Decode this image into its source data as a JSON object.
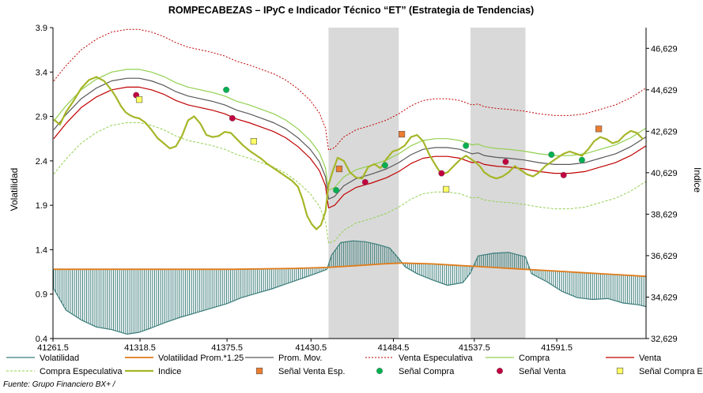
{
  "chart_data": {
    "type": "line",
    "title": "ROMPECABEZAS – IPyC e Indicador Técnico “ET” (Estrategia de Tendencias)",
    "ylabel": "Volatilidad",
    "y2label": "Indice",
    "source": "Fuente: Grupo Financiero BX+ /",
    "xlim": [
      41261.5,
      41650
    ],
    "ylim": [
      0.4,
      3.9
    ],
    "y2lim": [
      32629,
      47629
    ],
    "x_ticks": [
      "41261.5",
      "41318.5",
      "41375.5",
      "41430.5",
      "41484.5",
      "41537.5",
      "41591.5"
    ],
    "y_ticks": [
      "0.4",
      "0.9",
      "1.4",
      "1.9",
      "2.4",
      "2.9",
      "3.4",
      "3.9"
    ],
    "y2_ticks": [
      "32,629",
      "34,629",
      "36,629",
      "38,629",
      "40,629",
      "42,629",
      "44,629",
      "46,629"
    ],
    "shaded_regions": [
      [
        41442,
        41488
      ],
      [
        41535,
        41571
      ]
    ],
    "colors": {
      "volatilidad": "#3b7d7a",
      "vol_prom": "#e07b1a",
      "prom_mov": "#595959",
      "venta_esp": "#c00000",
      "compra": "#92d050",
      "venta": "#c00000",
      "compra_esp": "#92d050",
      "indice": "#a6b628",
      "shade": "#d9d9d9",
      "senal_venta_esp": "#ed7d31",
      "senal_compra": "#00b050",
      "senal_venta": "#c00040",
      "senal_compra_esp": "#ffff66"
    },
    "legend": [
      {
        "key": "volatilidad",
        "label": "Volatilidad"
      },
      {
        "key": "vol_prom",
        "label": "Volatilidad Prom.*1.25"
      },
      {
        "key": "prom_mov",
        "label": "Prom. Mov."
      },
      {
        "key": "venta_esp",
        "label": "Venta Especulativa"
      },
      {
        "key": "compra",
        "label": "Compra"
      },
      {
        "key": "venta",
        "label": "Venta"
      },
      {
        "key": "compra_esp",
        "label": "Compra Especulativa"
      },
      {
        "key": "indice",
        "label": "Indice"
      },
      {
        "key": "senal_venta_esp",
        "label": "Señal Venta Esp."
      },
      {
        "key": "senal_compra",
        "label": "Señal Compra"
      },
      {
        "key": "senal_venta",
        "label": "Señal Venta"
      },
      {
        "key": "senal_compra_esp",
        "label": "Señal Compra Esp."
      }
    ],
    "volatilidad_x": [
      41262,
      41270,
      41280,
      41290,
      41300,
      41310,
      41318,
      41326,
      41335,
      41345,
      41355,
      41365,
      41375,
      41385,
      41395,
      41405,
      41415,
      41425,
      41435,
      41441,
      41444,
      41450,
      41458,
      41466,
      41474,
      41482,
      41488,
      41492,
      41500,
      41510,
      41520,
      41530,
      41535,
      41540,
      41550,
      41560,
      41571,
      41575,
      41585,
      41595,
      41605,
      41615,
      41625,
      41635,
      41645,
      41650
    ],
    "volatilidad_y": [
      0.96,
      0.72,
      0.61,
      0.53,
      0.5,
      0.45,
      0.47,
      0.52,
      0.58,
      0.64,
      0.69,
      0.74,
      0.79,
      0.86,
      0.91,
      0.96,
      1.02,
      1.08,
      1.14,
      1.18,
      1.34,
      1.48,
      1.5,
      1.49,
      1.46,
      1.42,
      1.3,
      1.21,
      1.13,
      1.06,
      1.0,
      1.03,
      1.14,
      1.33,
      1.36,
      1.37,
      1.32,
      1.13,
      1.04,
      0.93,
      0.86,
      0.84,
      0.85,
      0.8,
      0.78,
      0.76
    ],
    "vol_prom_x": [
      41262,
      41300,
      41340,
      41380,
      41420,
      41441,
      41460,
      41478,
      41490,
      41510,
      41530,
      41550,
      41570,
      41590,
      41610,
      41630,
      41650
    ],
    "vol_prom_y": [
      1.18,
      1.18,
      1.18,
      1.18,
      1.19,
      1.2,
      1.22,
      1.24,
      1.25,
      1.24,
      1.22,
      1.2,
      1.18,
      1.16,
      1.14,
      1.12,
      1.1
    ],
    "indice_x": [
      41262,
      41266,
      41270,
      41275,
      41280,
      41285,
      41290,
      41295,
      41300,
      41303,
      41306,
      41309,
      41312,
      41315,
      41318,
      41322,
      41326,
      41330,
      41334,
      41338,
      41342,
      41346,
      41350,
      41354,
      41358,
      41362,
      41366,
      41370,
      41374,
      41378,
      41382,
      41386,
      41390,
      41394,
      41398,
      41402,
      41406,
      41410,
      41414,
      41418,
      41422,
      41425,
      41428,
      41431,
      41434,
      41437,
      41440,
      41442,
      41445,
      41448,
      41452,
      41456,
      41460,
      41464,
      41468,
      41472,
      41476,
      41480,
      41484,
      41488,
      41492,
      41496,
      41500,
      41504,
      41508,
      41512,
      41516,
      41520,
      41524,
      41528,
      41532,
      41535,
      41538,
      41541,
      41544,
      41548,
      41552,
      41556,
      41560,
      41564,
      41568,
      41572,
      41576,
      41580,
      41584,
      41588,
      41592,
      41596,
      41600,
      41604,
      41608,
      41612,
      41616,
      41620,
      41624,
      41628,
      41632,
      41636,
      41640,
      41644,
      41648
    ],
    "indice_y": [
      43200,
      42950,
      43550,
      44100,
      44700,
      45100,
      45250,
      45050,
      44600,
      44250,
      43850,
      43550,
      43400,
      43300,
      43250,
      43050,
      42700,
      42300,
      42050,
      41800,
      41900,
      42400,
      43150,
      43350,
      43000,
      42450,
      42350,
      42400,
      42600,
      42550,
      42250,
      41950,
      41700,
      41500,
      41300,
      41050,
      40850,
      40650,
      40450,
      40250,
      39950,
      39350,
      38550,
      38150,
      37900,
      38100,
      38750,
      40050,
      40750,
      41350,
      41200,
      40650,
      40400,
      40350,
      40900,
      41050,
      40850,
      41300,
      41650,
      41750,
      41950,
      42350,
      42450,
      42150,
      41500,
      41000,
      40550,
      40650,
      40950,
      41250,
      41450,
      41300,
      41150,
      40950,
      40650,
      40450,
      40350,
      40450,
      40650,
      40950,
      40750,
      40550,
      40450,
      40650,
      40950,
      41150,
      41350,
      41550,
      41650,
      41550,
      41450,
      41750,
      42150,
      42350,
      42250,
      42050,
      42150,
      42450,
      42650,
      42550,
      42250
    ],
    "prom_mov_x": [
      41262,
      41270,
      41280,
      41290,
      41300,
      41310,
      41318,
      41326,
      41334,
      41342,
      41350,
      41358,
      41366,
      41374,
      41382,
      41390,
      41398,
      41406,
      41414,
      41422,
      41430,
      41436,
      41440,
      41442,
      41446,
      41452,
      41460,
      41470,
      41480,
      41488,
      41496,
      41504,
      41512,
      41520,
      41528,
      41536,
      41540,
      41544,
      41552,
      41560,
      41570,
      41580,
      41590,
      41600,
      41610,
      41620,
      41630,
      41640,
      41650
    ],
    "prom_mov_y": [
      2.75,
      2.92,
      3.1,
      3.22,
      3.3,
      3.33,
      3.33,
      3.3,
      3.25,
      3.18,
      3.13,
      3.1,
      3.07,
      3.03,
      2.97,
      2.93,
      2.88,
      2.83,
      2.76,
      2.66,
      2.53,
      2.39,
      2.22,
      1.97,
      2.0,
      2.12,
      2.2,
      2.25,
      2.31,
      2.38,
      2.47,
      2.53,
      2.55,
      2.55,
      2.53,
      2.48,
      2.49,
      2.46,
      2.44,
      2.43,
      2.41,
      2.38,
      2.36,
      2.36,
      2.38,
      2.43,
      2.48,
      2.56,
      2.67
    ],
    "venta_esp_x": [
      41262,
      41270,
      41280,
      41290,
      41300,
      41310,
      41318,
      41326,
      41334,
      41342,
      41350,
      41358,
      41366,
      41374,
      41382,
      41390,
      41398,
      41406,
      41414,
      41422,
      41430,
      41436,
      41440,
      41442,
      41446,
      41452,
      41460,
      41470,
      41480,
      41488,
      41496,
      41504,
      41512,
      41520,
      41528,
      41536,
      41540,
      41544,
      41552,
      41560,
      41570,
      41580,
      41590,
      41600,
      41610,
      41620,
      41630,
      41640,
      41650
    ],
    "venta_esp_y": [
      3.3,
      3.47,
      3.65,
      3.77,
      3.85,
      3.88,
      3.88,
      3.85,
      3.8,
      3.73,
      3.68,
      3.65,
      3.62,
      3.58,
      3.52,
      3.48,
      3.43,
      3.38,
      3.31,
      3.21,
      3.08,
      2.94,
      2.77,
      2.52,
      2.55,
      2.67,
      2.75,
      2.8,
      2.86,
      2.93,
      3.02,
      3.08,
      3.1,
      3.1,
      3.08,
      3.03,
      3.04,
      3.01,
      2.99,
      2.98,
      2.96,
      2.93,
      2.91,
      2.91,
      2.93,
      2.98,
      3.03,
      3.11,
      3.22
    ],
    "compra_x": [
      41262,
      41270,
      41280,
      41290,
      41300,
      41310,
      41318,
      41326,
      41334,
      41342,
      41350,
      41358,
      41366,
      41374,
      41382,
      41390,
      41398,
      41406,
      41414,
      41422,
      41430,
      41436,
      41440,
      41442,
      41446,
      41452,
      41460,
      41470,
      41480,
      41488,
      41496,
      41504,
      41512,
      41520,
      41528,
      41536,
      41540,
      41544,
      41552,
      41560,
      41570,
      41580,
      41590,
      41600,
      41610,
      41620,
      41630,
      41640,
      41650
    ],
    "compra_y": [
      2.85,
      3.02,
      3.2,
      3.32,
      3.4,
      3.43,
      3.43,
      3.4,
      3.35,
      3.28,
      3.23,
      3.2,
      3.17,
      3.13,
      3.07,
      3.03,
      2.98,
      2.93,
      2.86,
      2.76,
      2.63,
      2.49,
      2.32,
      2.07,
      2.1,
      2.22,
      2.3,
      2.35,
      2.41,
      2.48,
      2.57,
      2.63,
      2.65,
      2.65,
      2.63,
      2.58,
      2.59,
      2.56,
      2.54,
      2.53,
      2.51,
      2.48,
      2.46,
      2.46,
      2.48,
      2.53,
      2.58,
      2.66,
      2.77
    ],
    "venta_x": [
      41262,
      41270,
      41280,
      41290,
      41300,
      41310,
      41318,
      41326,
      41334,
      41342,
      41350,
      41358,
      41366,
      41374,
      41382,
      41390,
      41398,
      41406,
      41414,
      41422,
      41430,
      41436,
      41440,
      41442,
      41446,
      41452,
      41460,
      41470,
      41480,
      41488,
      41496,
      41504,
      41512,
      41520,
      41528,
      41536,
      41540,
      41544,
      41552,
      41560,
      41570,
      41580,
      41590,
      41600,
      41610,
      41620,
      41630,
      41640,
      41650
    ],
    "venta_y": [
      2.65,
      2.82,
      3.0,
      3.12,
      3.2,
      3.23,
      3.23,
      3.2,
      3.15,
      3.08,
      3.03,
      3.0,
      2.97,
      2.93,
      2.87,
      2.83,
      2.78,
      2.73,
      2.66,
      2.56,
      2.43,
      2.29,
      2.12,
      1.87,
      1.9,
      2.02,
      2.1,
      2.15,
      2.21,
      2.28,
      2.37,
      2.43,
      2.45,
      2.45,
      2.43,
      2.38,
      2.39,
      2.36,
      2.34,
      2.33,
      2.31,
      2.28,
      2.26,
      2.26,
      2.28,
      2.33,
      2.38,
      2.46,
      2.57
    ],
    "compra_esp_x": [
      41262,
      41270,
      41280,
      41290,
      41300,
      41310,
      41318,
      41326,
      41334,
      41342,
      41350,
      41358,
      41366,
      41374,
      41382,
      41390,
      41398,
      41406,
      41414,
      41422,
      41430,
      41436,
      41440,
      41442,
      41446,
      41452,
      41460,
      41470,
      41480,
      41488,
      41496,
      41504,
      41512,
      41520,
      41528,
      41536,
      41540,
      41544,
      41552,
      41560,
      41570,
      41580,
      41590,
      41600,
      41610,
      41620,
      41630,
      41640,
      41650
    ],
    "compra_esp_y": [
      2.25,
      2.42,
      2.6,
      2.72,
      2.8,
      2.83,
      2.83,
      2.8,
      2.75,
      2.68,
      2.63,
      2.6,
      2.57,
      2.53,
      2.47,
      2.43,
      2.38,
      2.33,
      2.26,
      2.16,
      2.03,
      1.89,
      1.72,
      1.47,
      1.5,
      1.62,
      1.7,
      1.75,
      1.81,
      1.88,
      1.97,
      2.03,
      2.05,
      2.05,
      2.03,
      1.98,
      1.99,
      1.96,
      1.94,
      1.93,
      1.91,
      1.88,
      1.86,
      1.86,
      1.88,
      1.93,
      1.98,
      2.06,
      2.17
    ],
    "signals": [
      {
        "type": "senal_venta",
        "x": 41316,
        "y": 3.14
      },
      {
        "type": "senal_compra_esp",
        "x": 41318,
        "y": 3.09
      },
      {
        "type": "senal_compra",
        "x": 41375,
        "y": 3.2
      },
      {
        "type": "senal_venta",
        "x": 41379,
        "y": 2.88
      },
      {
        "type": "senal_compra_esp",
        "x": 41393,
        "y": 2.62
      },
      {
        "type": "senal_compra",
        "x": 41447,
        "y": 2.07
      },
      {
        "type": "senal_venta_esp",
        "x": 41449,
        "y": 2.31
      },
      {
        "type": "senal_venta",
        "x": 41466,
        "y": 2.16
      },
      {
        "type": "senal_compra",
        "x": 41479,
        "y": 2.35
      },
      {
        "type": "senal_venta_esp",
        "x": 41490,
        "y": 2.7
      },
      {
        "type": "senal_venta",
        "x": 41516,
        "y": 2.26
      },
      {
        "type": "senal_compra_esp",
        "x": 41519,
        "y": 2.08
      },
      {
        "type": "senal_compra",
        "x": 41532,
        "y": 2.57
      },
      {
        "type": "senal_venta",
        "x": 41558,
        "y": 2.39
      },
      {
        "type": "senal_compra",
        "x": 41588,
        "y": 2.47
      },
      {
        "type": "senal_venta",
        "x": 41596,
        "y": 2.24
      },
      {
        "type": "senal_compra",
        "x": 41608,
        "y": 2.41
      },
      {
        "type": "senal_venta_esp",
        "x": 41619,
        "y": 2.76
      }
    ]
  }
}
